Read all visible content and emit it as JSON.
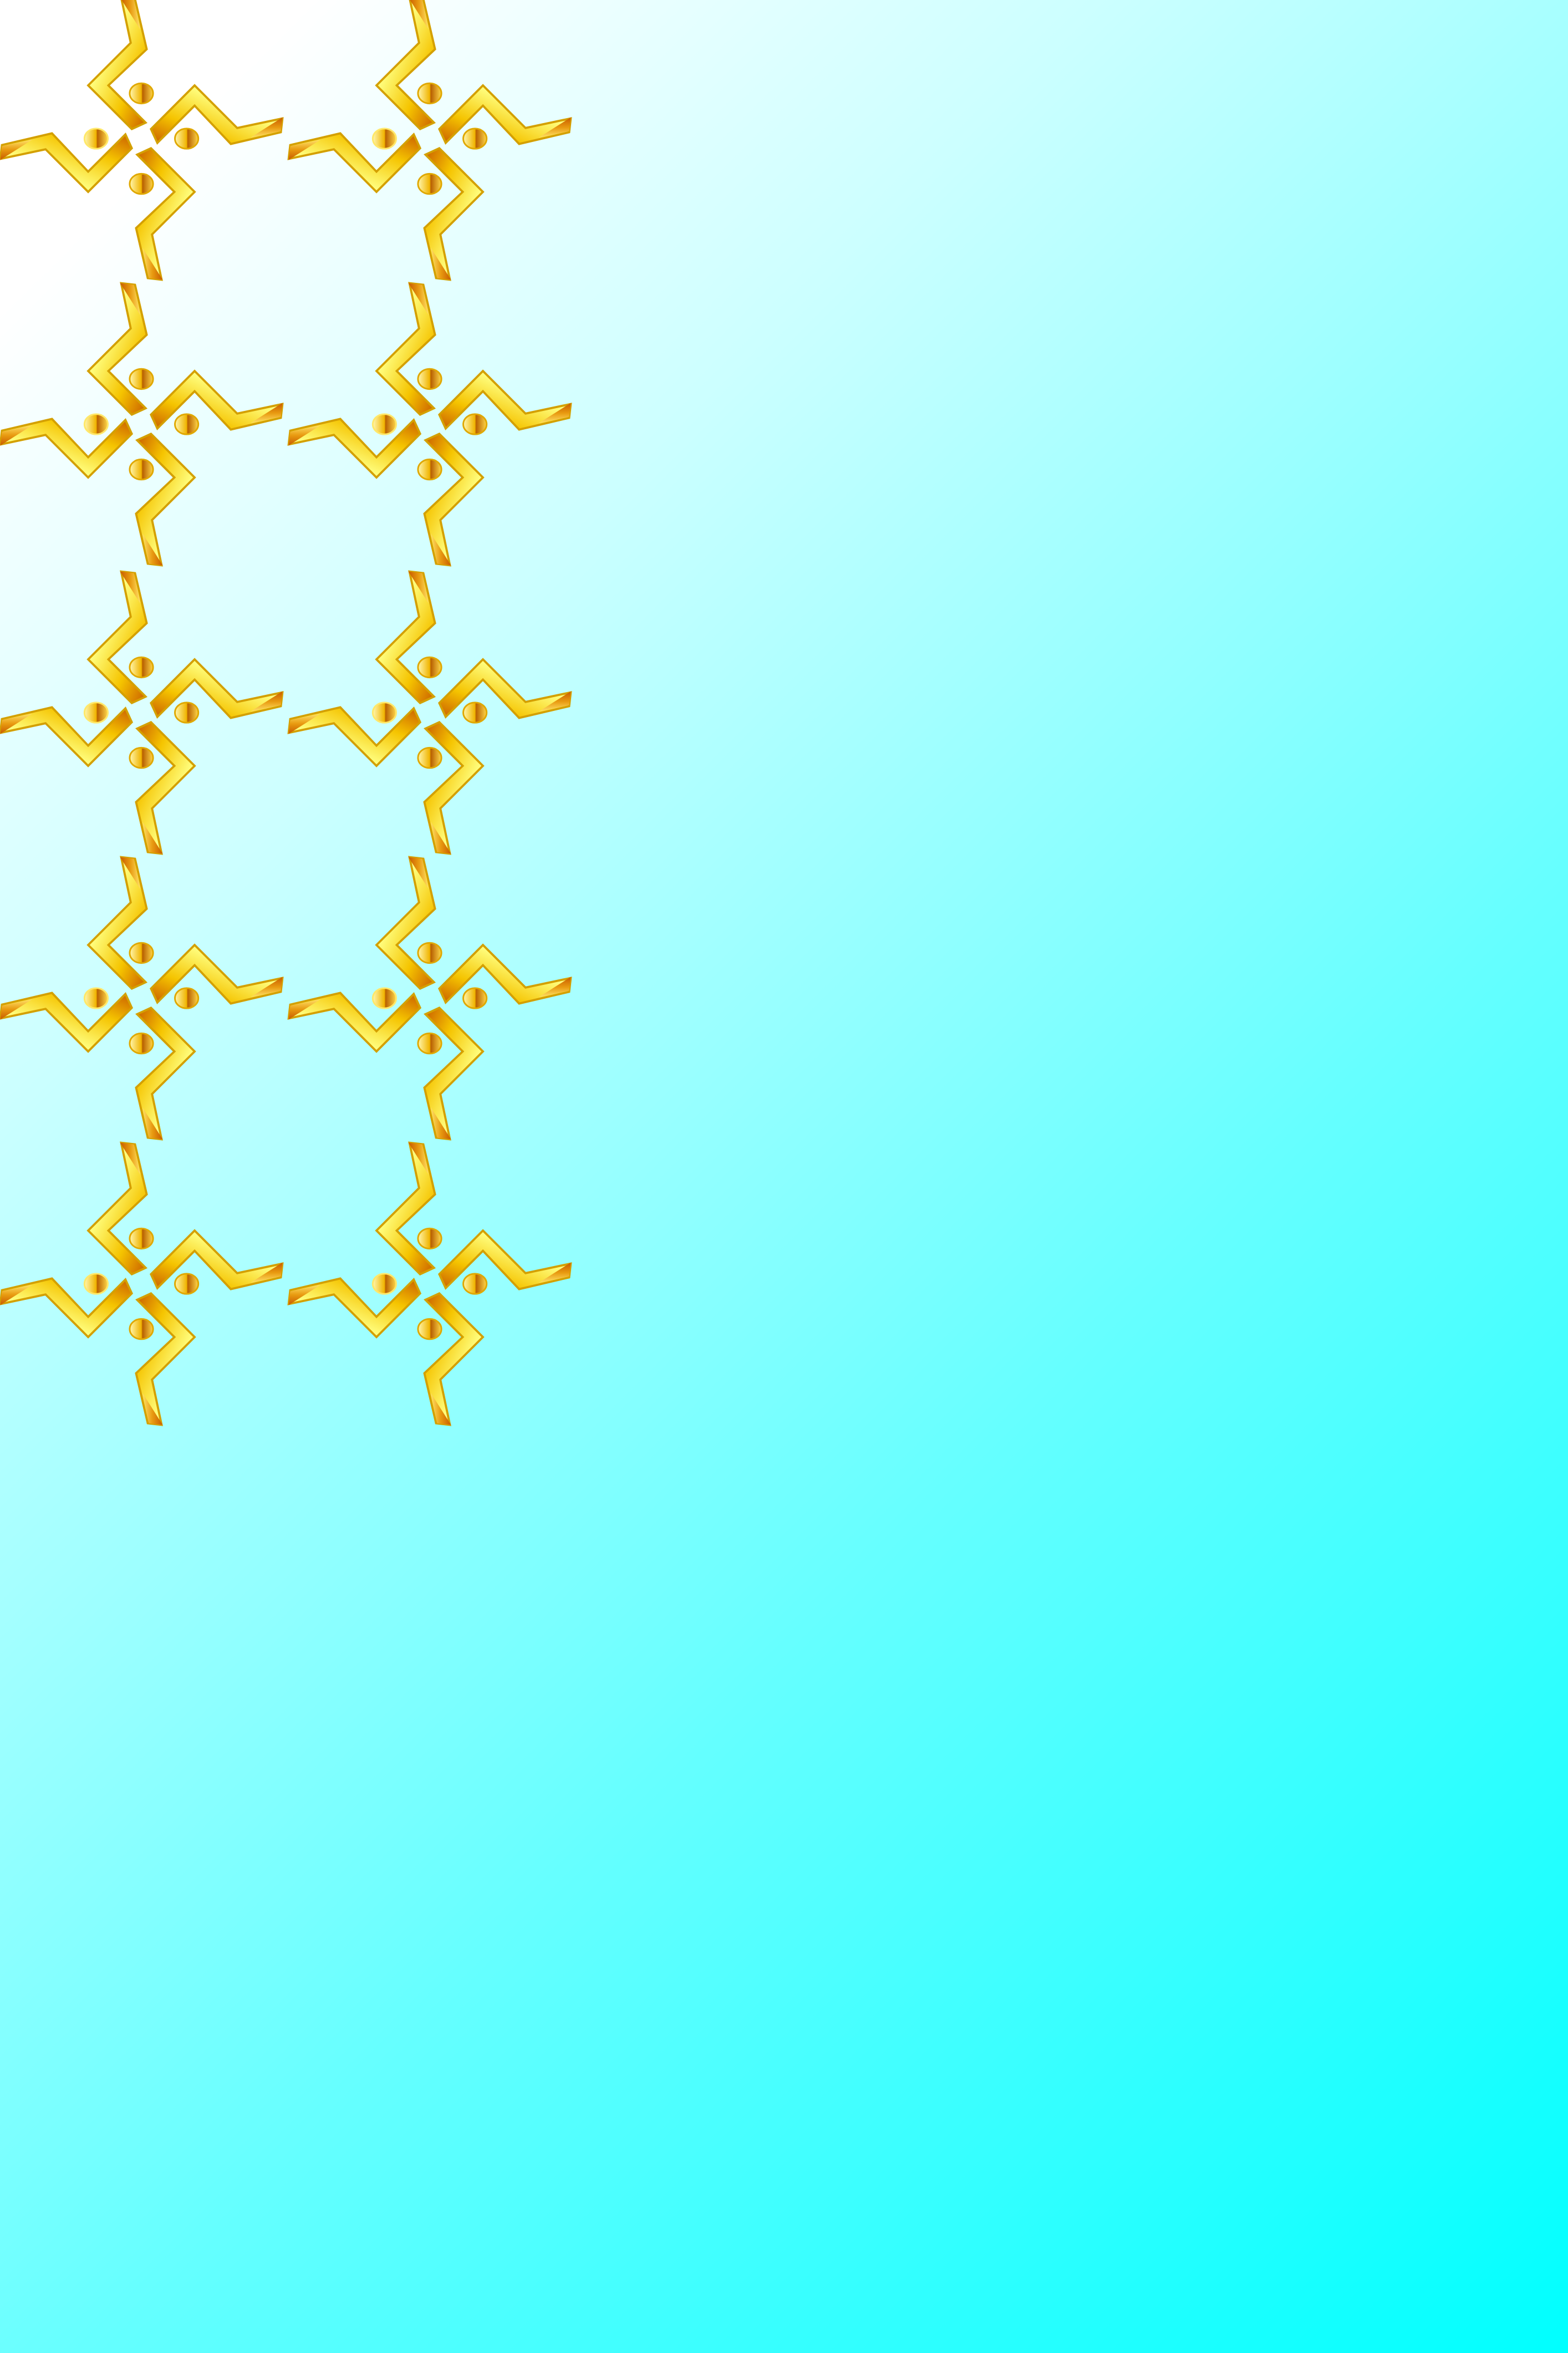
{
  "background": {
    "gradient_start": "#ffffff",
    "gradient_mid": "#ccffff",
    "gradient_end": "#00ffff"
  },
  "motif": {
    "icon": "swastika-ornament-icon",
    "columns": 2,
    "rows": 5,
    "colors": {
      "highlight": "#ffffe0",
      "light_gold": "#ffff80",
      "gold": "#f5c400",
      "amber": "#e89a10",
      "deep_orange": "#c85a00",
      "outline": "#d4a000"
    }
  }
}
